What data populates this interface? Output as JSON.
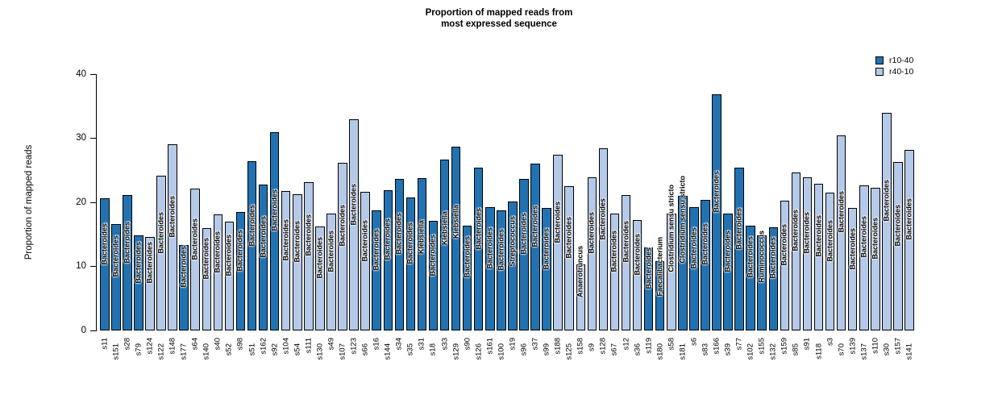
{
  "title": {
    "line1": "Proportion of mapped reads from",
    "line2": "most expressed sequence"
  },
  "y_axis": {
    "label": "Proportion of mapped reads"
  },
  "colors": {
    "r10-40": "#2272B2",
    "r40-10": "#B5C9E8",
    "bar_outline": "#000000"
  },
  "chart_data": {
    "type": "bar",
    "title": "Proportion of mapped reads from most expressed sequence",
    "xlabel": "",
    "ylabel": "Proportion of mapped reads",
    "ylim": [
      0,
      40
    ],
    "yticks": [
      0,
      10,
      20,
      30,
      40
    ],
    "grid": false,
    "legend": {
      "position": "top-right",
      "entries": [
        {
          "label": "r10-40",
          "color": "#2272B2"
        },
        {
          "label": "r40-10",
          "color": "#B5C9E8"
        }
      ]
    },
    "bars": [
      {
        "sample": "s11",
        "value": 20.6,
        "group": "r10-40",
        "genus": "Bacteroides"
      },
      {
        "sample": "s151",
        "value": 16.6,
        "group": "r10-40",
        "genus": "Bacteroides"
      },
      {
        "sample": "s28",
        "value": 21.1,
        "group": "r10-40",
        "genus": "Bacteroides"
      },
      {
        "sample": "s79",
        "value": 14.8,
        "group": "r10-40",
        "genus": "Bacteroides"
      },
      {
        "sample": "s124",
        "value": 14.6,
        "group": "r40-10",
        "genus": "Bacteroides"
      },
      {
        "sample": "s122",
        "value": 24.1,
        "group": "r40-10",
        "genus": "Bacteroides"
      },
      {
        "sample": "s148",
        "value": 29.0,
        "group": "r40-10",
        "genus": "Bacteroides"
      },
      {
        "sample": "s177",
        "value": 13.4,
        "group": "r10-40",
        "genus": "Bacteroides"
      },
      {
        "sample": "s64",
        "value": 22.1,
        "group": "r40-10",
        "genus": "Bacteroides"
      },
      {
        "sample": "s140",
        "value": 16.0,
        "group": "r40-10",
        "genus": "Bacteroides"
      },
      {
        "sample": "s40",
        "value": 18.1,
        "group": "r40-10",
        "genus": "Bacteroides"
      },
      {
        "sample": "s52",
        "value": 17.0,
        "group": "r40-10",
        "genus": "Bacteroides"
      },
      {
        "sample": "s98",
        "value": 18.5,
        "group": "r10-40",
        "genus": "Bacteroides"
      },
      {
        "sample": "s51",
        "value": 26.4,
        "group": "r10-40",
        "genus": "Bacteroides"
      },
      {
        "sample": "s162",
        "value": 22.8,
        "group": "r10-40",
        "genus": "Bacteroides"
      },
      {
        "sample": "s92",
        "value": 31.0,
        "group": "r10-40",
        "genus": "Bacteroides"
      },
      {
        "sample": "s104",
        "value": 21.8,
        "group": "r40-10",
        "genus": "Bacteroides"
      },
      {
        "sample": "s54",
        "value": 21.3,
        "group": "r40-10",
        "genus": "Bacteroides"
      },
      {
        "sample": "s111",
        "value": 23.2,
        "group": "r40-10",
        "genus": "Bacteroides"
      },
      {
        "sample": "s130",
        "value": 16.2,
        "group": "r40-10",
        "genus": "Bacteroides"
      },
      {
        "sample": "s49",
        "value": 18.2,
        "group": "r40-10",
        "genus": "Bacteroides"
      },
      {
        "sample": "s107",
        "value": 26.2,
        "group": "r40-10",
        "genus": "Bacteroides"
      },
      {
        "sample": "s123",
        "value": 32.9,
        "group": "r40-10",
        "genus": "Bacteroides"
      },
      {
        "sample": "s66",
        "value": 21.6,
        "group": "r40-10",
        "genus": "Bacteroides"
      },
      {
        "sample": "s16",
        "value": 18.7,
        "group": "r10-40",
        "genus": "Bacteroides"
      },
      {
        "sample": "s144",
        "value": 21.9,
        "group": "r10-40",
        "genus": "Bacteroides"
      },
      {
        "sample": "s34",
        "value": 23.7,
        "group": "r10-40",
        "genus": "Bacteroides"
      },
      {
        "sample": "s35",
        "value": 20.7,
        "group": "r10-40",
        "genus": "Bacteroides"
      },
      {
        "sample": "s31",
        "value": 23.8,
        "group": "r10-40",
        "genus": "Klebsiella"
      },
      {
        "sample": "s18",
        "value": 17.1,
        "group": "r10-40",
        "genus": "Bacteroides"
      },
      {
        "sample": "s33",
        "value": 26.7,
        "group": "r10-40",
        "genus": "Klebsiella"
      },
      {
        "sample": "s129",
        "value": 28.7,
        "group": "r10-40",
        "genus": "Klebsiella"
      },
      {
        "sample": "s90",
        "value": 16.4,
        "group": "r10-40",
        "genus": "Bacteroides"
      },
      {
        "sample": "s126",
        "value": 25.4,
        "group": "r10-40",
        "genus": "Bacteroides"
      },
      {
        "sample": "s161",
        "value": 19.3,
        "group": "r10-40",
        "genus": "Bacteroides"
      },
      {
        "sample": "s100",
        "value": 18.8,
        "group": "r10-40",
        "genus": "Bacteroides"
      },
      {
        "sample": "s19",
        "value": 20.1,
        "group": "r10-40",
        "genus": "Streptococcus"
      },
      {
        "sample": "s96",
        "value": 23.7,
        "group": "r10-40",
        "genus": "Bacteroides"
      },
      {
        "sample": "s37",
        "value": 26.0,
        "group": "r10-40",
        "genus": "Bacteroides"
      },
      {
        "sample": "s99",
        "value": 19.1,
        "group": "r10-40",
        "genus": "Bacteroides"
      },
      {
        "sample": "s188",
        "value": 27.4,
        "group": "r40-10",
        "genus": "Bacteroides"
      },
      {
        "sample": "s125",
        "value": 22.5,
        "group": "r40-10",
        "genus": "Bacteroides"
      },
      {
        "sample": "s158",
        "value": 10.3,
        "group": "r40-10",
        "genus": "Anaerotruncus"
      },
      {
        "sample": "s9",
        "value": 23.9,
        "group": "r40-10",
        "genus": "Bacteroides"
      },
      {
        "sample": "s128",
        "value": 28.4,
        "group": "r40-10",
        "genus": "Bacteroides"
      },
      {
        "sample": "s67",
        "value": 18.2,
        "group": "r40-10",
        "genus": "Bacteroides"
      },
      {
        "sample": "s12",
        "value": 21.2,
        "group": "r40-10",
        "genus": "Bacteroides"
      },
      {
        "sample": "s36",
        "value": 17.3,
        "group": "r40-10",
        "genus": "Bacteroides"
      },
      {
        "sample": "s119",
        "value": 12.9,
        "group": "r10-40",
        "genus": "Bacteroides"
      },
      {
        "sample": "s180",
        "value": 10.8,
        "group": "r10-40",
        "genus": "Faecalibacterium"
      },
      {
        "sample": "s58",
        "value": 18.2,
        "group": "r40-10",
        "genus": "Clostridium sensu stricto"
      },
      {
        "sample": "s181",
        "value": 21.0,
        "group": "r10-40",
        "genus": "Clostridium sensu stricto"
      },
      {
        "sample": "s6",
        "value": 19.3,
        "group": "r10-40",
        "genus": "Bacteroides"
      },
      {
        "sample": "s83",
        "value": 20.4,
        "group": "r10-40",
        "genus": "Bacteroides"
      },
      {
        "sample": "s166",
        "value": 36.9,
        "group": "r10-40",
        "genus": "Bacteroides"
      },
      {
        "sample": "s39",
        "value": 18.2,
        "group": "r10-40",
        "genus": "Bacteroides"
      },
      {
        "sample": "s77",
        "value": 25.4,
        "group": "r10-40",
        "genus": "Bacteroides"
      },
      {
        "sample": "s102",
        "value": 16.4,
        "group": "r10-40",
        "genus": "Bacteroides"
      },
      {
        "sample": "s155",
        "value": 14.9,
        "group": "r10-40",
        "genus": "Ruminococcus"
      },
      {
        "sample": "s132",
        "value": 16.1,
        "group": "r10-40",
        "genus": "Bacteroides"
      },
      {
        "sample": "s159",
        "value": 20.2,
        "group": "r40-10",
        "genus": "Bacteroides"
      },
      {
        "sample": "s85",
        "value": 24.7,
        "group": "r40-10",
        "genus": "Bacteroides"
      },
      {
        "sample": "s91",
        "value": 23.9,
        "group": "r40-10",
        "genus": "Bacteroides"
      },
      {
        "sample": "s118",
        "value": 22.9,
        "group": "r40-10",
        "genus": "Bacteroides"
      },
      {
        "sample": "s3",
        "value": 21.5,
        "group": "r40-10",
        "genus": "Bacteroides"
      },
      {
        "sample": "s70",
        "value": 30.5,
        "group": "r40-10",
        "genus": "Bacteroides"
      },
      {
        "sample": "s139",
        "value": 19.1,
        "group": "r40-10",
        "genus": "Bacteroides"
      },
      {
        "sample": "s137",
        "value": 22.7,
        "group": "r40-10",
        "genus": "Bacteroides"
      },
      {
        "sample": "s110",
        "value": 22.3,
        "group": "r40-10",
        "genus": "Bacteroides"
      },
      {
        "sample": "s30",
        "value": 34.0,
        "group": "r40-10",
        "genus": "Bacteroides"
      },
      {
        "sample": "s157",
        "value": 26.3,
        "group": "r40-10",
        "genus": "Bacteroides"
      },
      {
        "sample": "s141",
        "value": 28.2,
        "group": "r40-10",
        "genus": "Bacteroides"
      }
    ]
  }
}
